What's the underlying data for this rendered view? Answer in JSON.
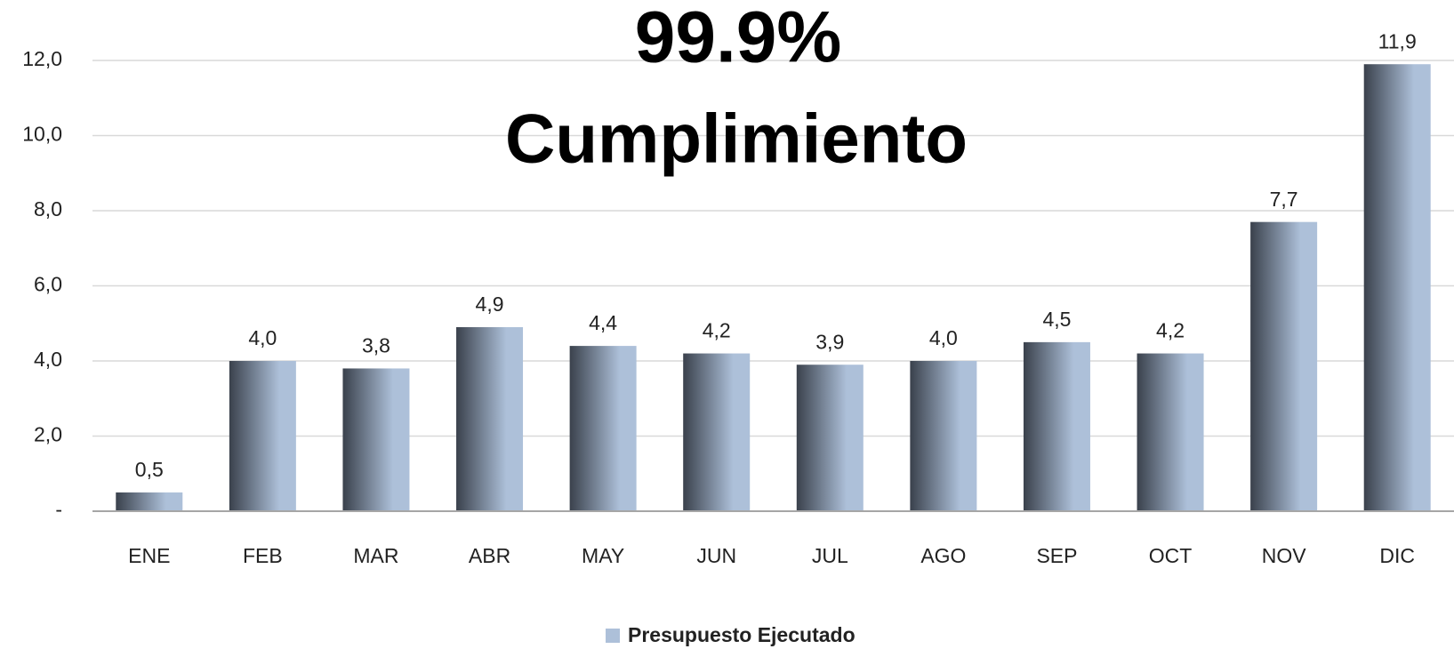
{
  "chart_data": {
    "type": "bar",
    "title": "99.9%",
    "subtitle": "Cumplimiento",
    "categories": [
      "ENE",
      "FEB",
      "MAR",
      "ABR",
      "MAY",
      "JUN",
      "JUL",
      "AGO",
      "SEP",
      "OCT",
      "NOV",
      "DIC"
    ],
    "series": [
      {
        "name": "Presupuesto Ejecutado",
        "color": "#adc0d9",
        "values": [
          0.5,
          4.0,
          3.8,
          4.9,
          4.4,
          4.2,
          3.9,
          4.0,
          4.5,
          4.2,
          7.7,
          11.9
        ],
        "value_labels": [
          "0,5",
          "4,0",
          "3,8",
          "4,9",
          "4,4",
          "4,2",
          "3,9",
          "4,0",
          "4,5",
          "4,2",
          "7,7",
          "11,9"
        ]
      }
    ],
    "ylim": [
      0,
      12
    ],
    "yticks": [
      {
        "value": 0,
        "label": "-"
      },
      {
        "value": 2,
        "label": "2,0"
      },
      {
        "value": 4,
        "label": "4,0"
      },
      {
        "value": 6,
        "label": "6,0"
      },
      {
        "value": 8,
        "label": "8,0"
      },
      {
        "value": 10,
        "label": "10,0"
      },
      {
        "value": 12,
        "label": "12,0"
      }
    ],
    "grid": true,
    "legend": "bottom"
  }
}
